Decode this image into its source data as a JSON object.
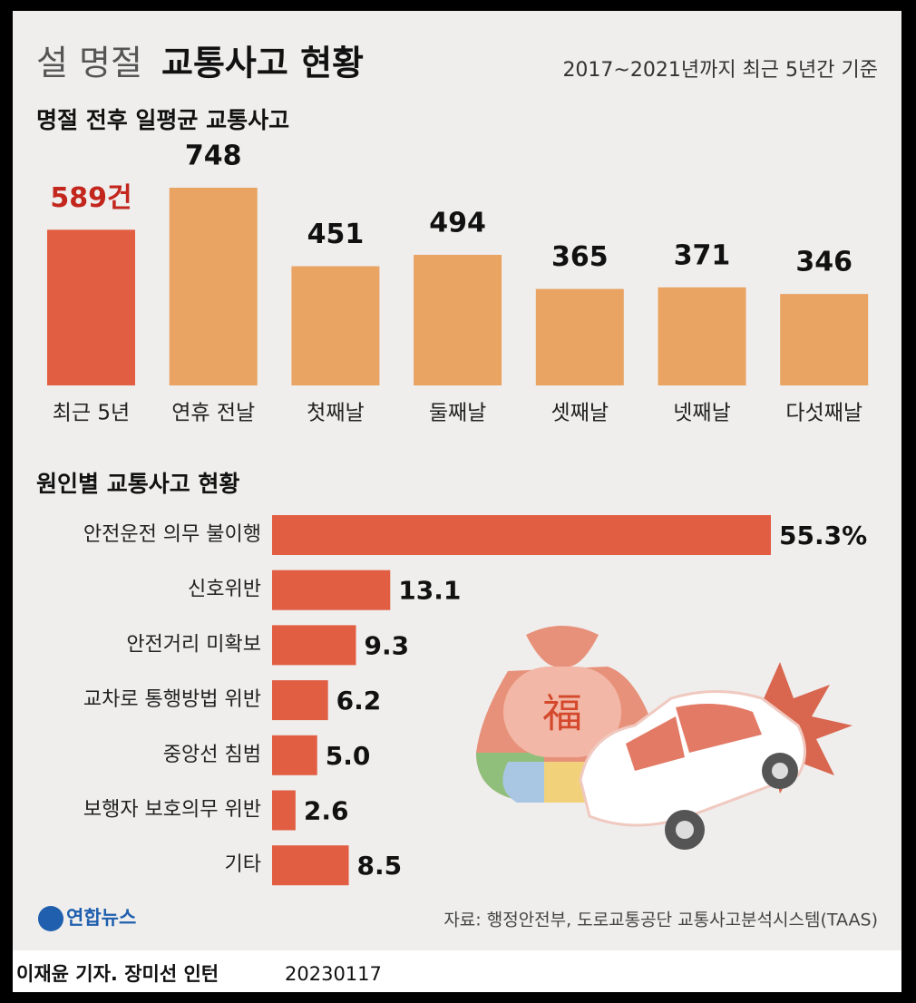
{
  "title": [
    "설 명절",
    "교통사고 현황"
  ],
  "subtitle": "2017~2021년까지 최근 5년간 기준",
  "chart_data": [
    {
      "type": "bar",
      "title": "명절 전후 일평균 교통사고",
      "categories": [
        "최근 5년",
        "연휴 전날",
        "첫째날",
        "둘째날",
        "셋째날",
        "넷째날",
        "다섯째날"
      ],
      "values": [
        589,
        748,
        451,
        494,
        365,
        371,
        346
      ],
      "value_labels": [
        "589건",
        "748",
        "451",
        "494",
        "365",
        "371",
        "346"
      ],
      "colors": [
        "#e25e43",
        "#e9a363",
        "#e9a363",
        "#e9a363",
        "#e9a363",
        "#e9a363",
        "#e9a363"
      ],
      "label_colors": [
        "#c3261c",
        "#111111",
        "#111111",
        "#111111",
        "#111111",
        "#111111",
        "#111111"
      ]
    },
    {
      "type": "hbar",
      "title": "원인별 교통사고 현황",
      "categories": [
        "안전운전 의무 불이행",
        "신호위반",
        "안전거리 미확보",
        "교차로 통행방법 위반",
        "중앙선 침범",
        "보행자 보호의무 위반",
        "기타"
      ],
      "values": [
        55.3,
        13.1,
        9.3,
        6.2,
        5.0,
        2.6,
        8.5
      ],
      "value_labels": [
        "55.3%",
        "13.1",
        "9.3",
        "6.2",
        "5.0",
        "2.6",
        "8.5"
      ],
      "color": "#e25e43"
    }
  ],
  "illustration_text": "福",
  "source": "자료: 행정안전부, 도로교통공단 교통사고분석시스템(TAAS)",
  "logo": "연합뉴스",
  "credit": "이재윤 기자. 장미선 인턴",
  "date": "20230117"
}
